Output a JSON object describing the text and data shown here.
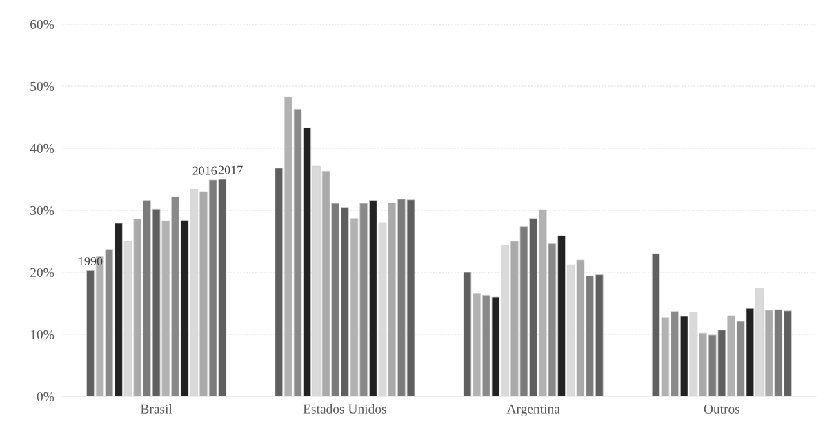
{
  "chart_data": {
    "type": "bar",
    "categories": [
      "Brasil",
      "Estados Unidos",
      "Argentina",
      "Outros"
    ],
    "series": [
      {
        "name": "1990",
        "color": "#5f5f5f",
        "values": [
          20.3,
          36.8,
          20.0,
          23.0
        ]
      },
      {
        "color": "#b2b2b2",
        "values": [
          22.5,
          48.3,
          16.6,
          12.7
        ]
      },
      {
        "color": "#898989",
        "values": [
          23.7,
          46.3,
          16.3,
          13.7
        ]
      },
      {
        "color": "#222222",
        "values": [
          27.9,
          43.3,
          16.0,
          12.9
        ]
      },
      {
        "color": "#dadada",
        "values": [
          25.0,
          37.1,
          24.3,
          13.6
        ]
      },
      {
        "color": "#aaaaaa",
        "values": [
          28.6,
          36.3,
          25.0,
          10.2
        ]
      },
      {
        "color": "#7b7b7b",
        "values": [
          31.6,
          31.1,
          27.4,
          9.9
        ]
      },
      {
        "color": "#5f5f5f",
        "values": [
          30.2,
          30.5,
          28.7,
          10.7
        ]
      },
      {
        "color": "#b2b2b2",
        "values": [
          28.3,
          28.7,
          30.1,
          13.0
        ]
      },
      {
        "color": "#898989",
        "values": [
          32.2,
          31.1,
          24.6,
          12.1
        ]
      },
      {
        "color": "#222222",
        "values": [
          28.4,
          31.6,
          25.9,
          14.2
        ]
      },
      {
        "color": "#dadada",
        "values": [
          33.4,
          28.0,
          21.2,
          17.4
        ]
      },
      {
        "color": "#aaaaaa",
        "values": [
          33.0,
          31.2,
          22.0,
          13.9
        ]
      },
      {
        "name": "2016",
        "color": "#7b7b7b",
        "values": [
          34.9,
          31.8,
          19.4,
          14.0
        ]
      },
      {
        "name": "2017",
        "color": "#5f5f5f",
        "values": [
          35.0,
          31.7,
          19.6,
          13.8
        ]
      }
    ],
    "ylim": [
      0,
      60
    ],
    "yticks": [
      {
        "value": 0,
        "label": "0%"
      },
      {
        "value": 10,
        "label": "10%"
      },
      {
        "value": 20,
        "label": "20%"
      },
      {
        "value": 30,
        "label": "30%"
      },
      {
        "value": 40,
        "label": "40%"
      },
      {
        "value": 50,
        "label": "50%"
      },
      {
        "value": 60,
        "label": "60%"
      }
    ],
    "grid": "y",
    "legend": false
  }
}
